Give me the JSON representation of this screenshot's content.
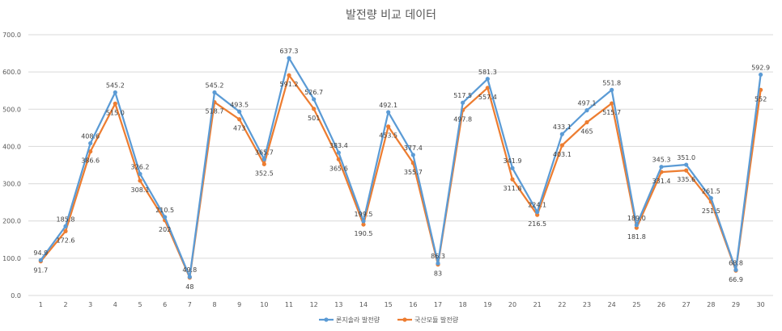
{
  "chart_data": {
    "type": "line",
    "title": "발전량 비교 데이터",
    "xlabel": "",
    "ylabel": "",
    "x": [
      1,
      2,
      3,
      4,
      5,
      6,
      7,
      8,
      9,
      10,
      11,
      12,
      13,
      14,
      15,
      16,
      17,
      18,
      19,
      20,
      21,
      22,
      23,
      24,
      25,
      26,
      27,
      28,
      29,
      30
    ],
    "ylim": [
      0,
      700
    ],
    "yticks": [
      "0.0",
      "100.0",
      "200.0",
      "300.0",
      "400.0",
      "500.0",
      "600.0",
      "700.0"
    ],
    "grid": "horizontal",
    "legend_position": "bottom",
    "series": [
      {
        "name": "론지솔라 발전량",
        "color": "#5b9bd5",
        "values": [
          94.9,
          185.8,
          408.6,
          545.2,
          326.2,
          210.5,
          49.8,
          545.2,
          493.5,
          365.7,
          637.3,
          526.7,
          383.4,
          199.5,
          492.1,
          377.4,
          86.3,
          517.5,
          581.3,
          341.9,
          224.1,
          433.1,
          497.1,
          551.8,
          189.0,
          345.3,
          351.0,
          261.5,
          68.8,
          592.9
        ],
        "labels": [
          "94.9",
          "185.8",
          "408.6",
          "545.2",
          "326.2",
          "210.5",
          "49.8",
          "545.2",
          "493.5",
          "365.7",
          "637.3",
          "526.7",
          "383.4",
          "199.5",
          "492.1",
          "377.4",
          "86.3",
          "517.5",
          "581.3",
          "341.9",
          "224.1",
          "433.1",
          "497.1",
          "551.8",
          "189.0",
          "345.3",
          "351.0",
          "261.5",
          "68.8",
          "592.9"
        ]
      },
      {
        "name": "국산모듈 발전량",
        "color": "#ed7d31",
        "values": [
          91.7,
          172.6,
          386.6,
          515.0,
          308.1,
          202,
          48,
          518.7,
          473,
          352.5,
          591.2,
          501,
          365.6,
          190.5,
          453.5,
          355.7,
          83,
          497.8,
          557.4,
          311.8,
          216.5,
          403.1,
          465,
          515.7,
          181.8,
          331.4,
          335.6,
          251.5,
          66.9,
          552
        ],
        "labels": [
          "91.7",
          "172.6",
          "386.6",
          "515.0",
          "308.1",
          "202",
          "48",
          "518.7",
          "473",
          "352.5",
          "591.2",
          "501",
          "365.6",
          "190.5",
          "453.5",
          "355.7",
          "83",
          "497.8",
          "557.4",
          "311.8",
          "216.5",
          "403.1",
          "465",
          "515.7",
          "181.8",
          "331.4",
          "335.6",
          "251.5",
          "66.9",
          "552"
        ]
      }
    ]
  }
}
